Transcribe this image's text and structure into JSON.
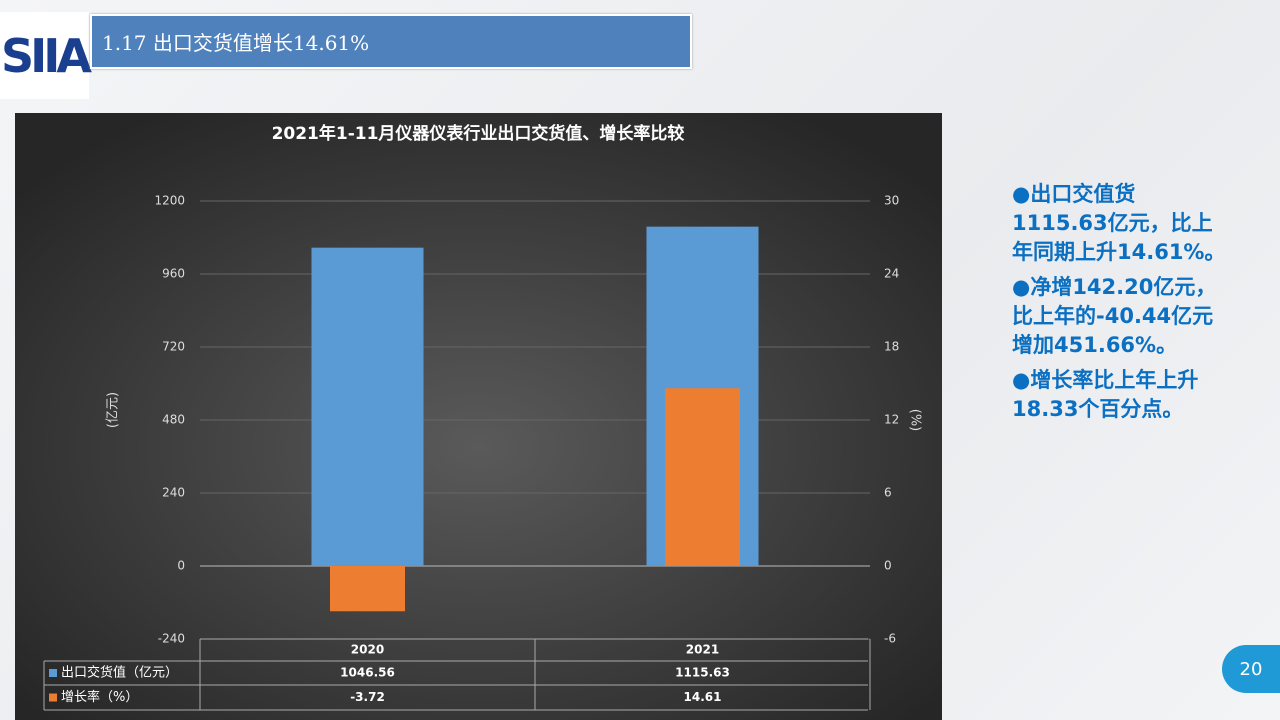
{
  "header": {
    "logo": "SIIA",
    "title": "1.17 出口交货值增长14.61%"
  },
  "chart_data": {
    "type": "bar",
    "title": "2021年1-11月仪器仪表行业出口交货值、增长率比较",
    "categories": [
      "2020",
      "2021"
    ],
    "series": [
      {
        "name": "出口交货值（亿元）",
        "color": "#5b9bd5",
        "values": [
          1046.56,
          1115.63
        ]
      },
      {
        "name": "增长率（%）",
        "color": "#ed7d31",
        "axis": "y2",
        "values": [
          -3.72,
          14.61
        ]
      }
    ],
    "ylabel": "(亿元)",
    "y2label": "(%)",
    "ylim": [
      -240,
      1200
    ],
    "yticks": [
      -240,
      0,
      240,
      480,
      720,
      960,
      1200
    ],
    "y2lim": [
      -6,
      30
    ],
    "y2ticks": [
      -6,
      0,
      6,
      12,
      18,
      24,
      30
    ],
    "grid": true
  },
  "notes": [
    "●出口交值货1115.63亿元，比上年同期上升14.61%。",
    "●净增142.20亿元，比上年的-40.44亿元增加451.66%。",
    "●增长率比上年上升18.33个百分点。"
  ],
  "page_number": "20"
}
